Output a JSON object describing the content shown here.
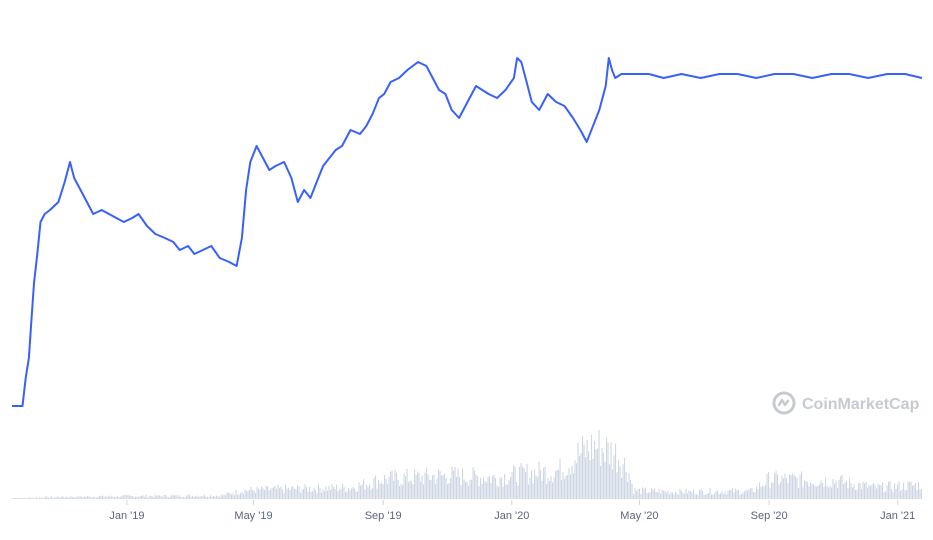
{
  "chart_data": {
    "type": "line",
    "title": "",
    "xlabel": "",
    "ylabel": "",
    "x_tick_labels": [
      "Jan '19",
      "May '19",
      "Sep '19",
      "Jan '20",
      "May '20",
      "Sep '20",
      "Jan '21"
    ],
    "x_tick_dates": [
      "2019-01-01",
      "2019-05-01",
      "2019-09-01",
      "2020-01-01",
      "2020-05-01",
      "2020-09-01",
      "2021-01-01"
    ],
    "x_range": [
      "2018-09-14",
      "2021-01-24"
    ],
    "y_range": [
      0,
      1
    ],
    "grid": false,
    "legend": "none",
    "line_color": "#3861fb",
    "volume_color": "#cfd6e4",
    "series": [
      {
        "values": [
          [
            "2018-09-14",
            0.04
          ],
          [
            "2018-09-24",
            0.04
          ],
          [
            "2018-09-27",
            0.11
          ],
          [
            "2018-09-30",
            0.16
          ],
          [
            "2018-10-02",
            0.24
          ],
          [
            "2018-10-05",
            0.35
          ],
          [
            "2018-10-08",
            0.42
          ],
          [
            "2018-10-11",
            0.5
          ],
          [
            "2018-10-15",
            0.52
          ],
          [
            "2018-10-20",
            0.53
          ],
          [
            "2018-10-28",
            0.55
          ],
          [
            "2018-11-03",
            0.6
          ],
          [
            "2018-11-08",
            0.65
          ],
          [
            "2018-11-12",
            0.61
          ],
          [
            "2018-11-16",
            0.59
          ],
          [
            "2018-11-22",
            0.56
          ],
          [
            "2018-11-30",
            0.52
          ],
          [
            "2018-12-08",
            0.53
          ],
          [
            "2018-12-15",
            0.52
          ],
          [
            "2018-12-22",
            0.51
          ],
          [
            "2018-12-29",
            0.5
          ],
          [
            "2019-01-06",
            0.51
          ],
          [
            "2019-01-12",
            0.52
          ],
          [
            "2019-01-20",
            0.49
          ],
          [
            "2019-01-28",
            0.47
          ],
          [
            "2019-02-06",
            0.46
          ],
          [
            "2019-02-14",
            0.45
          ],
          [
            "2019-02-20",
            0.43
          ],
          [
            "2019-02-28",
            0.44
          ],
          [
            "2019-03-06",
            0.42
          ],
          [
            "2019-03-14",
            0.43
          ],
          [
            "2019-03-22",
            0.44
          ],
          [
            "2019-03-30",
            0.41
          ],
          [
            "2019-04-08",
            0.4
          ],
          [
            "2019-04-15",
            0.39
          ],
          [
            "2019-04-20",
            0.46
          ],
          [
            "2019-04-24",
            0.58
          ],
          [
            "2019-04-28",
            0.65
          ],
          [
            "2019-05-04",
            0.69
          ],
          [
            "2019-05-10",
            0.66
          ],
          [
            "2019-05-16",
            0.63
          ],
          [
            "2019-05-22",
            0.64
          ],
          [
            "2019-05-30",
            0.65
          ],
          [
            "2019-06-06",
            0.61
          ],
          [
            "2019-06-12",
            0.55
          ],
          [
            "2019-06-18",
            0.58
          ],
          [
            "2019-06-24",
            0.56
          ],
          [
            "2019-06-30",
            0.6
          ],
          [
            "2019-07-06",
            0.64
          ],
          [
            "2019-07-12",
            0.66
          ],
          [
            "2019-07-18",
            0.68
          ],
          [
            "2019-07-24",
            0.69
          ],
          [
            "2019-08-01",
            0.73
          ],
          [
            "2019-08-10",
            0.72
          ],
          [
            "2019-08-16",
            0.74
          ],
          [
            "2019-08-22",
            0.77
          ],
          [
            "2019-08-28",
            0.81
          ],
          [
            "2019-09-02",
            0.82
          ],
          [
            "2019-09-08",
            0.85
          ],
          [
            "2019-09-16",
            0.86
          ],
          [
            "2019-09-24",
            0.88
          ],
          [
            "2019-10-04",
            0.9
          ],
          [
            "2019-10-12",
            0.89
          ],
          [
            "2019-10-18",
            0.86
          ],
          [
            "2019-10-24",
            0.83
          ],
          [
            "2019-10-30",
            0.82
          ],
          [
            "2019-11-05",
            0.78
          ],
          [
            "2019-11-12",
            0.76
          ],
          [
            "2019-11-20",
            0.8
          ],
          [
            "2019-11-28",
            0.84
          ],
          [
            "2019-12-04",
            0.83
          ],
          [
            "2019-12-10",
            0.82
          ],
          [
            "2019-12-18",
            0.81
          ],
          [
            "2019-12-26",
            0.83
          ],
          [
            "2020-01-03",
            0.86
          ],
          [
            "2020-01-06",
            0.91
          ],
          [
            "2020-01-10",
            0.9
          ],
          [
            "2020-01-15",
            0.85
          ],
          [
            "2020-01-20",
            0.8
          ],
          [
            "2020-01-27",
            0.78
          ],
          [
            "2020-02-04",
            0.82
          ],
          [
            "2020-02-12",
            0.8
          ],
          [
            "2020-02-20",
            0.79
          ],
          [
            "2020-02-28",
            0.76
          ],
          [
            "2020-03-06",
            0.73
          ],
          [
            "2020-03-12",
            0.7
          ],
          [
            "2020-03-18",
            0.74
          ],
          [
            "2020-03-24",
            0.78
          ],
          [
            "2020-03-30",
            0.84
          ],
          [
            "2020-04-02",
            0.91
          ],
          [
            "2020-04-05",
            0.88
          ],
          [
            "2020-04-08",
            0.86
          ],
          [
            "2020-04-14",
            0.87
          ],
          [
            "2020-04-25",
            0.87
          ],
          [
            "2020-05-10",
            0.87
          ],
          [
            "2020-05-24",
            0.86
          ],
          [
            "2020-06-10",
            0.87
          ],
          [
            "2020-06-28",
            0.86
          ],
          [
            "2020-07-16",
            0.87
          ],
          [
            "2020-08-02",
            0.87
          ],
          [
            "2020-08-20",
            0.86
          ],
          [
            "2020-09-06",
            0.87
          ],
          [
            "2020-09-24",
            0.87
          ],
          [
            "2020-10-12",
            0.86
          ],
          [
            "2020-10-30",
            0.87
          ],
          [
            "2020-11-16",
            0.87
          ],
          [
            "2020-12-04",
            0.86
          ],
          [
            "2020-12-22",
            0.87
          ],
          [
            "2021-01-08",
            0.87
          ],
          [
            "2021-01-24",
            0.86
          ]
        ]
      }
    ],
    "volume_profile": [
      [
        "2018-09-14",
        0.01
      ],
      [
        "2018-11-01",
        0.03
      ],
      [
        "2019-01-01",
        0.04
      ],
      [
        "2019-04-01",
        0.05
      ],
      [
        "2019-04-20",
        0.12
      ],
      [
        "2019-06-01",
        0.14
      ],
      [
        "2019-08-01",
        0.16
      ],
      [
        "2019-09-01",
        0.28
      ],
      [
        "2019-11-01",
        0.33
      ],
      [
        "2019-12-15",
        0.3
      ],
      [
        "2020-01-15",
        0.36
      ],
      [
        "2020-02-15",
        0.4
      ],
      [
        "2020-03-01",
        0.6
      ],
      [
        "2020-03-20",
        0.75
      ],
      [
        "2020-04-01",
        0.68
      ],
      [
        "2020-04-10",
        0.62
      ],
      [
        "2020-04-20",
        0.4
      ],
      [
        "2020-04-25",
        0.12
      ],
      [
        "2020-06-01",
        0.1
      ],
      [
        "2020-08-15",
        0.11
      ],
      [
        "2020-09-01",
        0.28
      ],
      [
        "2020-11-01",
        0.26
      ],
      [
        "2020-12-10",
        0.16
      ],
      [
        "2021-01-01",
        0.18
      ],
      [
        "2021-01-24",
        0.2
      ]
    ],
    "watermark": "CoinMarketCap"
  }
}
